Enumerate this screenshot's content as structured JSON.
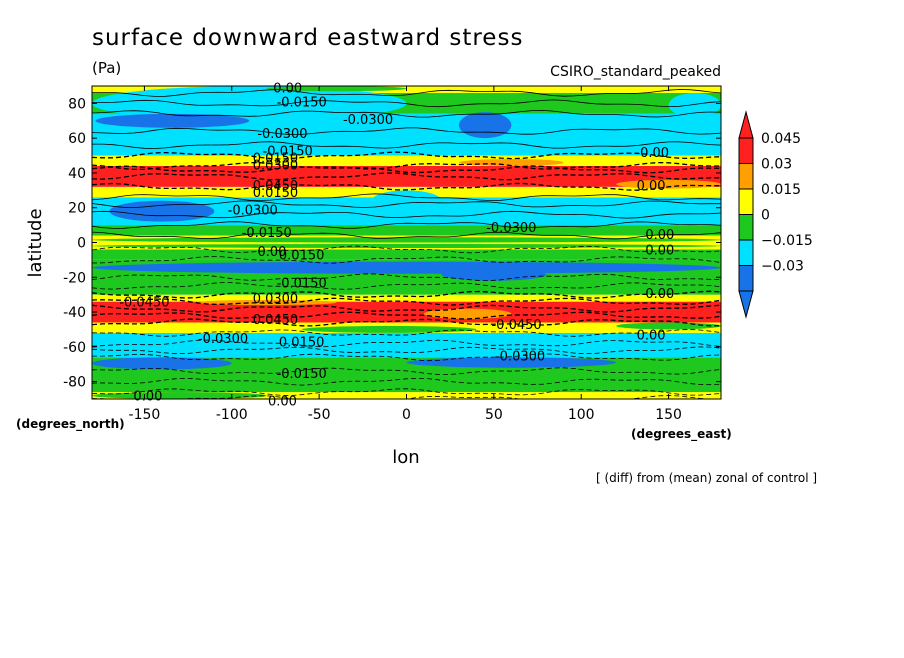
{
  "chart_data": {
    "type": "heatmap",
    "title": "surface downward eastward stress",
    "units": "(Pa)",
    "subtitle": "CSIRO_standard_peaked",
    "xlabel": "lon",
    "ylabel": "latitude",
    "x_units": "(degrees_east)",
    "y_units": "(degrees_north)",
    "note": "[ (diff) from (mean) zonal of control ]",
    "xlim": [
      -180,
      180
    ],
    "ylim": [
      -90,
      90
    ],
    "x_ticks": [
      -150,
      -100,
      -50,
      0,
      50,
      100,
      150
    ],
    "y_ticks": [
      -80,
      -60,
      -40,
      -20,
      0,
      20,
      40,
      60,
      80
    ],
    "colorbar": {
      "levels": [
        -0.045,
        -0.03,
        -0.015,
        0,
        0.015,
        0.03,
        0.045
      ],
      "tick_labels": [
        "0.045",
        "0.03",
        "0.015",
        "0",
        "−0.015",
        "−0.03"
      ],
      "colors": [
        "#1873e8",
        "#00e0ff",
        "#1fc81f",
        "#ffff00",
        "#ffa000",
        "#ff2020"
      ]
    },
    "bands": [
      {
        "lat": [
          -90,
          -86
        ],
        "value": 0.005
      },
      {
        "lat": [
          -86,
          -66
        ],
        "value": -0.012
      },
      {
        "lat": [
          -66,
          -52
        ],
        "value": -0.03
      },
      {
        "lat": [
          -52,
          -46
        ],
        "value": 0.01
      },
      {
        "lat": [
          -46,
          -34
        ],
        "value": 0.05
      },
      {
        "lat": [
          -34,
          -30
        ],
        "value": 0.008
      },
      {
        "lat": [
          -30,
          -10
        ],
        "value": -0.012
      },
      {
        "lat": [
          -10,
          -4
        ],
        "value": -0.005
      },
      {
        "lat": [
          -4,
          4
        ],
        "value": 0.005
      },
      {
        "lat": [
          4,
          10
        ],
        "value": -0.005
      },
      {
        "lat": [
          10,
          26
        ],
        "value": -0.03
      },
      {
        "lat": [
          26,
          32
        ],
        "value": 0.01
      },
      {
        "lat": [
          32,
          44
        ],
        "value": 0.05
      },
      {
        "lat": [
          44,
          50
        ],
        "value": 0.01
      },
      {
        "lat": [
          50,
          74
        ],
        "value": -0.03
      },
      {
        "lat": [
          74,
          86
        ],
        "value": -0.012
      },
      {
        "lat": [
          86,
          90
        ],
        "value": 0.005
      }
    ],
    "contour_labels": [
      {
        "text": "0.00",
        "lon": -68,
        "lat": 89
      },
      {
        "text": "-0.0150",
        "lon": -60,
        "lat": 81
      },
      {
        "text": "-0.0300",
        "lon": -22,
        "lat": 71
      },
      {
        "text": "-0.0300",
        "lon": -71,
        "lat": 63
      },
      {
        "text": "-0.0150",
        "lon": -68,
        "lat": 53
      },
      {
        "text": "0.0150",
        "lon": -75,
        "lat": 49
      },
      {
        "text": "0.0300",
        "lon": -75,
        "lat": 45
      },
      {
        "text": "0.00",
        "lon": 142,
        "lat": 52
      },
      {
        "text": "0.0450",
        "lon": -75,
        "lat": 33
      },
      {
        "text": "0.0150",
        "lon": -75,
        "lat": 29
      },
      {
        "text": "0.00",
        "lon": 140,
        "lat": 33
      },
      {
        "text": "-0.0300",
        "lon": -88,
        "lat": 19
      },
      {
        "text": "-0.0300",
        "lon": 60,
        "lat": 9
      },
      {
        "text": "-0.0150",
        "lon": -80,
        "lat": 6
      },
      {
        "text": "0.00",
        "lon": 145,
        "lat": 5
      },
      {
        "text": "0.00",
        "lon": -77,
        "lat": -5
      },
      {
        "text": "0.0150",
        "lon": -60,
        "lat": -7
      },
      {
        "text": "0.00",
        "lon": 145,
        "lat": -4
      },
      {
        "text": "-0.0150",
        "lon": -60,
        "lat": -23
      },
      {
        "text": "-0.0450",
        "lon": -150,
        "lat": -34
      },
      {
        "text": "0.0300",
        "lon": -75,
        "lat": -32
      },
      {
        "text": "0.00",
        "lon": 145,
        "lat": -29
      },
      {
        "text": "0.0450",
        "lon": -75,
        "lat": -44
      },
      {
        "text": "-0.0450",
        "lon": 63,
        "lat": -47
      },
      {
        "text": "0.00",
        "lon": 140,
        "lat": -53
      },
      {
        "text": "-0.0300",
        "lon": -105,
        "lat": -55
      },
      {
        "text": "0.0150",
        "lon": -60,
        "lat": -57
      },
      {
        "text": "-0.0300",
        "lon": 65,
        "lat": -65
      },
      {
        "text": "-0.0150",
        "lon": -60,
        "lat": -75
      },
      {
        "text": "0.00",
        "lon": -148,
        "lat": -88
      },
      {
        "text": "0.00",
        "lon": -71,
        "lat": -91
      }
    ]
  }
}
